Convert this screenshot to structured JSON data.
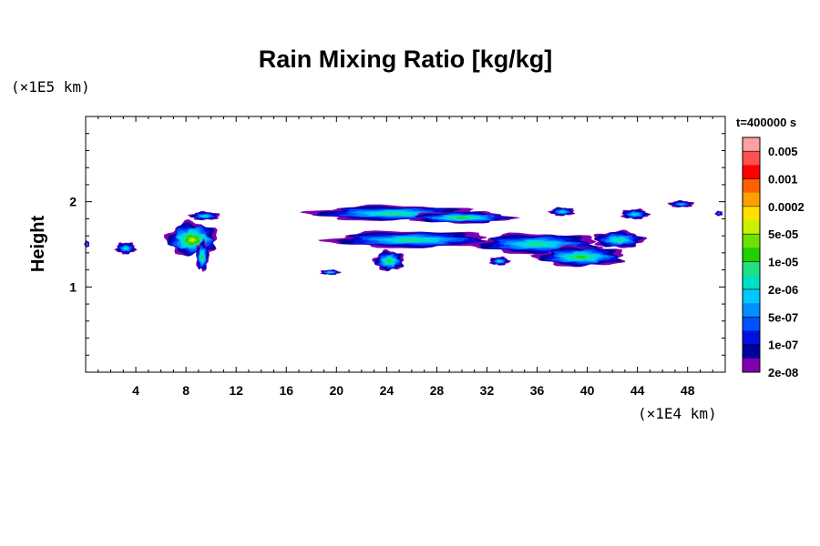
{
  "chart_data": {
    "type": "heatmap",
    "title": "Rain Mixing Ratio [kg/kg]",
    "xlabel": "",
    "ylabel": "Height",
    "x_unit": "(×1E4 km)",
    "y_unit": "(×1E5 km)",
    "xlim": [
      0,
      51
    ],
    "ylim": [
      0,
      3
    ],
    "x_ticks": [
      4,
      8,
      12,
      16,
      20,
      24,
      28,
      32,
      36,
      40,
      44,
      48
    ],
    "y_ticks": [
      1,
      2
    ],
    "time_label": "t=400000 s",
    "colorbar": {
      "labels": [
        "0.005",
        "0.001",
        "0.0002",
        "5e-05",
        "1e-05",
        "2e-06",
        "5e-07",
        "1e-07",
        "2e-08"
      ],
      "colors": [
        "#ffa0a0",
        "#ff5050",
        "#ff0000",
        "#ff6000",
        "#ffa000",
        "#ffe000",
        "#c8f000",
        "#70e000",
        "#20d000",
        "#20e080",
        "#00e0c0",
        "#00c8ff",
        "#0090ff",
        "#0050ff",
        "#0010e0",
        "#00009a",
        "#8000b0"
      ]
    },
    "regions": [
      {
        "x": 8.5,
        "y": 1.55,
        "rx": 2.0,
        "ry": 0.2,
        "peak": 11
      },
      {
        "x": 9.3,
        "y": 1.35,
        "rx": 0.5,
        "ry": 0.18,
        "peak": 9
      },
      {
        "x": 9.5,
        "y": 1.83,
        "rx": 1.2,
        "ry": 0.05,
        "peak": 7
      },
      {
        "x": 3.2,
        "y": 1.45,
        "rx": 0.8,
        "ry": 0.07,
        "peak": 7
      },
      {
        "x": 0.1,
        "y": 1.5,
        "rx": 0.2,
        "ry": 0.04,
        "peak": 6
      },
      {
        "x": 24.5,
        "y": 1.86,
        "rx": 6.5,
        "ry": 0.09,
        "peak": 8
      },
      {
        "x": 30,
        "y": 1.81,
        "rx": 4.0,
        "ry": 0.07,
        "peak": 9
      },
      {
        "x": 26,
        "y": 1.55,
        "rx": 6.5,
        "ry": 0.1,
        "peak": 8
      },
      {
        "x": 24.2,
        "y": 1.3,
        "rx": 1.2,
        "ry": 0.12,
        "peak": 9
      },
      {
        "x": 36,
        "y": 1.5,
        "rx": 5.0,
        "ry": 0.12,
        "peak": 8
      },
      {
        "x": 39.5,
        "y": 1.35,
        "rx": 3.5,
        "ry": 0.12,
        "peak": 9
      },
      {
        "x": 42.5,
        "y": 1.55,
        "rx": 2.0,
        "ry": 0.1,
        "peak": 8
      },
      {
        "x": 38,
        "y": 1.88,
        "rx": 1.0,
        "ry": 0.05,
        "peak": 7
      },
      {
        "x": 43.8,
        "y": 1.85,
        "rx": 1.1,
        "ry": 0.06,
        "peak": 7
      },
      {
        "x": 47.5,
        "y": 1.97,
        "rx": 1.0,
        "ry": 0.04,
        "peak": 6
      },
      {
        "x": 19.5,
        "y": 1.17,
        "rx": 0.8,
        "ry": 0.03,
        "peak": 7
      },
      {
        "x": 33,
        "y": 1.3,
        "rx": 0.8,
        "ry": 0.05,
        "peak": 7
      },
      {
        "x": 50.5,
        "y": 1.86,
        "rx": 0.3,
        "ry": 0.03,
        "peak": 5
      }
    ]
  }
}
